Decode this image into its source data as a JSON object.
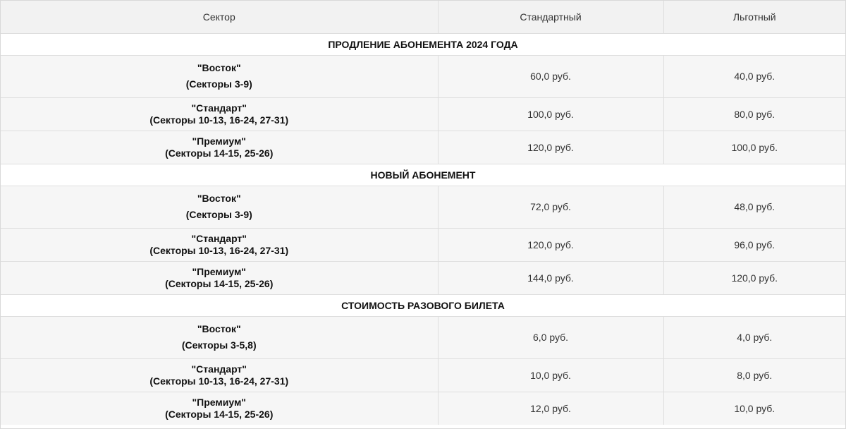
{
  "headers": {
    "sector": "Сектор",
    "standard": "Стандартный",
    "reduced": "Льготный"
  },
  "sections": [
    {
      "title": "ПРОДЛЕНИЕ АБОНЕМЕНТА 2024 ГОДА",
      "rows": [
        {
          "name": "\"Восток\"",
          "range": "(Секторы 3-9)",
          "standard": "60,0 руб.",
          "reduced": "40,0 руб."
        },
        {
          "name": "\"Стандарт\"",
          "range": "(Секторы 10-13, 16-24, 27-31)",
          "standard": "100,0 руб.",
          "reduced": "80,0 руб."
        },
        {
          "name": "\"Премиум\"",
          "range": "(Секторы 14-15, 25-26)",
          "standard": "120,0 руб.",
          "reduced": "100,0 руб."
        }
      ]
    },
    {
      "title": "НОВЫЙ АБОНЕМЕНТ",
      "rows": [
        {
          "name": "\"Восток\"",
          "range": "(Секторы 3-9)",
          "standard": "72,0 руб.",
          "reduced": "48,0 руб."
        },
        {
          "name": "\"Стандарт\"",
          "range": "(Секторы 10-13, 16-24, 27-31)",
          "standard": "120,0 руб.",
          "reduced": "96,0 руб."
        },
        {
          "name": "\"Премиум\"",
          "range": "(Секторы 14-15, 25-26)",
          "standard": "144,0 руб.",
          "reduced": "120,0 руб."
        }
      ]
    },
    {
      "title": "СТОИМОСТЬ РАЗОВОГО БИЛЕТА",
      "rows": [
        {
          "name": "\"Восток\"",
          "range": "(Секторы 3-5,8)",
          "standard": "6,0 руб.",
          "reduced": "4,0 руб."
        },
        {
          "name": "\"Стандарт\"",
          "range": "(Секторы 10-13, 16-24, 27-31)",
          "standard": "10,0 руб.",
          "reduced": "8,0 руб."
        },
        {
          "name": "\"Премиум\"",
          "range": "(Секторы 14-15, 25-26)",
          "standard": "12,0 руб.",
          "reduced": "10,0 руб."
        }
      ]
    }
  ]
}
